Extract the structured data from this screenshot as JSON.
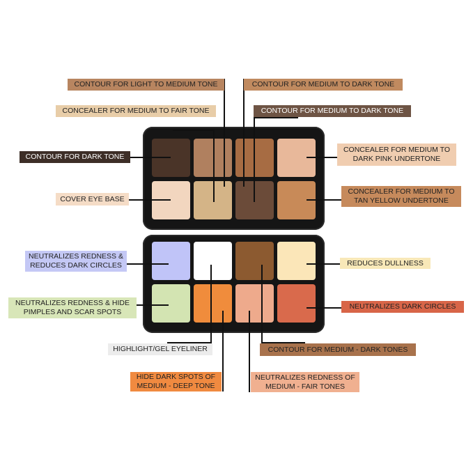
{
  "palette_top": {
    "pans": [
      "#4a3428",
      "#b0805f",
      "#a76c43",
      "#e8b89a",
      "#f2d6bf",
      "#d4b487",
      "#6b4b39",
      "#c88a58"
    ]
  },
  "palette_bottom": {
    "pans": [
      "#c0c4f8",
      "#ffffff",
      "#8c5a30",
      "#fbe6b8",
      "#d3e4b2",
      "#f08c3c",
      "#eeaa8c",
      "#d96a4c"
    ]
  },
  "labels": {
    "l1": {
      "text": "CONTOUR FOR LIGHT TO MEDIUM TONE",
      "color": "#b88560"
    },
    "l2": {
      "text": "CONTOUR FOR MEDIUM TO DARK TONE",
      "color": "#c08a5f"
    },
    "l3": {
      "text": "CONCEALER FOR MEDIUM TO FAIR TONE",
      "color": "#e8cda8"
    },
    "l4": {
      "text": "CONTOUR FOR MEDIUM TO DARK TONE",
      "color": "#6e5444"
    },
    "l5": {
      "text": "CONTOUR FOR DARK TONE",
      "color": "#3d2e27"
    },
    "l6": {
      "text": "CONCEALER FOR MEDIUM TO DARK PINK UNDERTONE",
      "color": "#f0cdb0"
    },
    "l7": {
      "text": "COVER EYE BASE",
      "color": "#f5dcc6"
    },
    "l8": {
      "text": "CONCEALER FOR MEDIUM TO TAN YELLOW UNDERTONE",
      "color": "#c68a5c"
    },
    "l9": {
      "text": "NEUTRALIZES REDNESS & REDUCES DARK CIRCLES",
      "color": "#c4c8f5"
    },
    "l10": {
      "text": "REDUCES DULLNESS",
      "color": "#f8e8b8"
    },
    "l11": {
      "text": "NEUTRALIZES REDNESS & HIDE PIMPLES AND SCAR SPOTS",
      "color": "#d8e6b8"
    },
    "l12": {
      "text": "NEUTRALIZES DARK CIRCLES",
      "color": "#d86548"
    },
    "l13": {
      "text": "HIGHLIGHT/GEL EYELINER",
      "color": "#ececec"
    },
    "l14": {
      "text": "CONTOUR FOR MEDIUM - DARK TONES",
      "color": "#a8724c"
    },
    "l15": {
      "text": "HIDE DARK SPOTS OF MEDIUM - DEEP TONE",
      "color": "#f08a40"
    },
    "l16": {
      "text": "NEUTRALIZES REDNESS OF MEDIUM - FAIR TONES",
      "color": "#f0b090"
    }
  }
}
